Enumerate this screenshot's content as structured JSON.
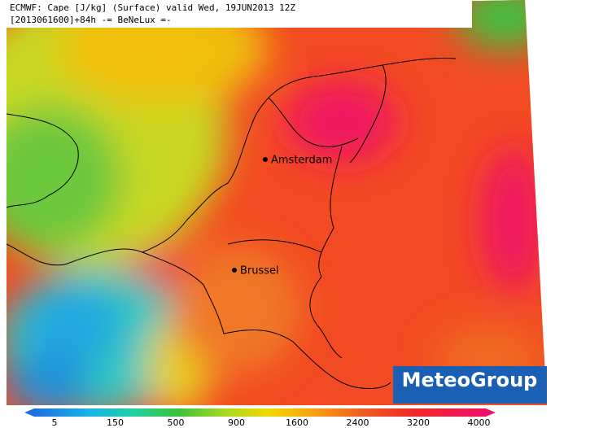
{
  "header": {
    "lines": [
      "ECMWF: Cape [J/kg] (Surface) valid Wed, 19JUN2013 12Z",
      "[2013061600]+84h -= BeNeLux =-"
    ]
  },
  "cities": [
    {
      "name": "Amsterdam"
    },
    {
      "name": "Brussel"
    }
  ],
  "logo": {
    "text": "MeteoGroup"
  },
  "legend": {
    "ticks": [
      5,
      150,
      500,
      900,
      1600,
      2400,
      3200,
      4000
    ]
  }
}
